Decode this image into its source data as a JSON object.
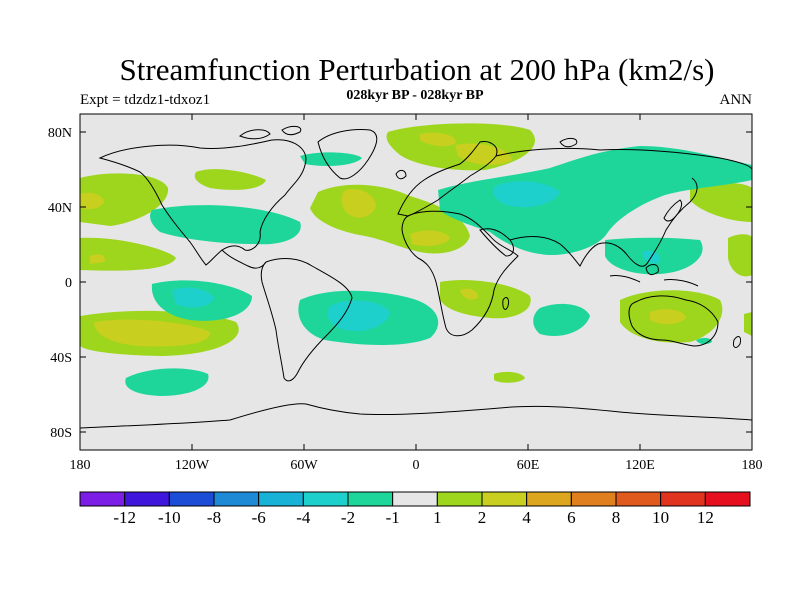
{
  "title": "Streamfunction Perturbation at 200 hPa (km2/s)",
  "left_subtitle": "Expt = tdzdz1-tdxoz1",
  "center_subtitle": "028kyr BP - 028kyr BP",
  "right_subtitle": "ANN",
  "lat_ticks": [
    "80N",
    "40N",
    "0",
    "40S",
    "80S"
  ],
  "lon_ticks": [
    "180",
    "120W",
    "60W",
    "0",
    "60E",
    "120E",
    "180"
  ],
  "colorbar": {
    "colors": [
      "#7c1ee6",
      "#3f16dc",
      "#1c4dd6",
      "#1e8ad6",
      "#18b2d6",
      "#1ed0cb",
      "#1ed69a",
      "#e6e6e6",
      "#9ed61e",
      "#c8cf1e",
      "#dca71e",
      "#e07f1e",
      "#e05a1e",
      "#e0341e",
      "#e60f1e"
    ],
    "labels": [
      "-12",
      "-10",
      "-8",
      "-6",
      "-4",
      "-2",
      "-1",
      "1",
      "2",
      "4",
      "6",
      "8",
      "10",
      "12"
    ]
  },
  "colors": {
    "land_outline": "#000000",
    "background": "#e6e6e6"
  }
}
